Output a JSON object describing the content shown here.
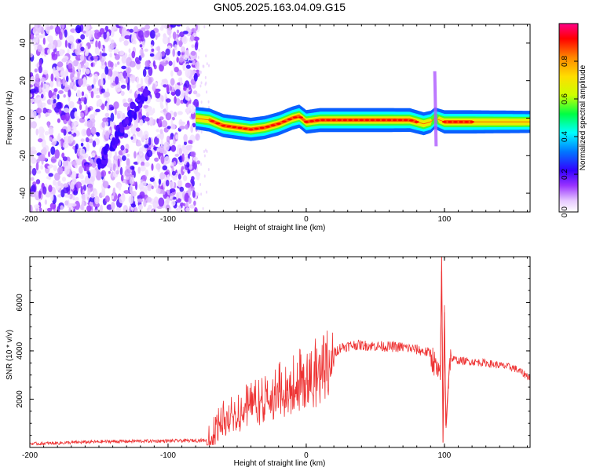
{
  "figure": {
    "title": "GN05.2025.163.04.09.G15"
  },
  "chart_data": [
    {
      "type": "heatmap",
      "panel": "top",
      "xlabel": "Height of straight line (km)",
      "ylabel": "Frequency (Hz)",
      "xlim": [
        -200,
        162
      ],
      "ylim": [
        -50,
        50
      ],
      "xticks": [
        -200,
        -100,
        0,
        100
      ],
      "yticks": [
        -40,
        -20,
        0,
        20,
        40
      ],
      "colorbar": {
        "label": "Normalized spectral amplitude",
        "range": [
          0.0,
          1.0
        ],
        "ticks": [
          0.0,
          0.2,
          0.4,
          0.6,
          0.8
        ],
        "colors": [
          "#ffffff",
          "#e6c8ff",
          "#9933ff",
          "#3300ff",
          "#0077ff",
          "#00ffff",
          "#00ff44",
          "#ccff00",
          "#ffdd00",
          "#ff8800",
          "#ff0000",
          "#ff0088"
        ]
      },
      "noise_region": {
        "x_range": [
          -200,
          -78
        ],
        "y_range": [
          -50,
          50
        ]
      },
      "diagonal_feature": {
        "points": [
          [
            -150,
            -25
          ],
          [
            -115,
            15
          ]
        ]
      },
      "ridge": {
        "x": [
          -80,
          -70,
          -60,
          -50,
          -40,
          -30,
          -20,
          -10,
          -5,
          0,
          10,
          30,
          60,
          75,
          85,
          90,
          93,
          100,
          120,
          162
        ],
        "y": [
          0,
          -1,
          -4,
          -5,
          -6,
          -5,
          -3,
          0,
          1,
          -2,
          -1,
          -1,
          -1,
          -1,
          -3,
          -2,
          0,
          -2,
          -2,
          -2
        ],
        "amplitude": [
          0.75,
          0.85,
          0.85,
          0.85,
          0.85,
          0.85,
          0.85,
          0.85,
          0.85,
          0.9,
          0.95,
          0.95,
          0.95,
          0.9,
          0.8,
          0.7,
          0.6,
          0.85,
          0.85,
          0.7
        ]
      },
      "spike_feature": {
        "x": 93,
        "y_range": [
          -15,
          25
        ]
      }
    },
    {
      "type": "line",
      "panel": "bottom",
      "xlabel": "Height of straight line (km)",
      "ylabel": "SNR (10 * v/v)",
      "xlim": [
        -200,
        162
      ],
      "ylim": [
        0,
        7900
      ],
      "xticks": [
        -200,
        -100,
        0,
        100
      ],
      "yticks": [
        2000,
        4000,
        6000
      ],
      "grid": false,
      "series": [
        {
          "color": "#ee3333",
          "x": [
            -200,
            -180,
            -160,
            -140,
            -120,
            -100,
            -85,
            -72,
            -68,
            -60,
            -50,
            -40,
            -30,
            -20,
            -10,
            0,
            10,
            18,
            25,
            35,
            50,
            70,
            80,
            90,
            97,
            98,
            99,
            100,
            101,
            104,
            110,
            130,
            150,
            162
          ],
          "y": [
            150,
            180,
            220,
            250,
            260,
            270,
            280,
            300,
            700,
            1400,
            1700,
            2000,
            2300,
            2600,
            3000,
            3200,
            3500,
            3800,
            4150,
            4250,
            4200,
            4150,
            4050,
            3900,
            2800,
            7900,
            200,
            5600,
            900,
            3700,
            3600,
            3500,
            3300,
            2900
          ]
        }
      ]
    }
  ]
}
